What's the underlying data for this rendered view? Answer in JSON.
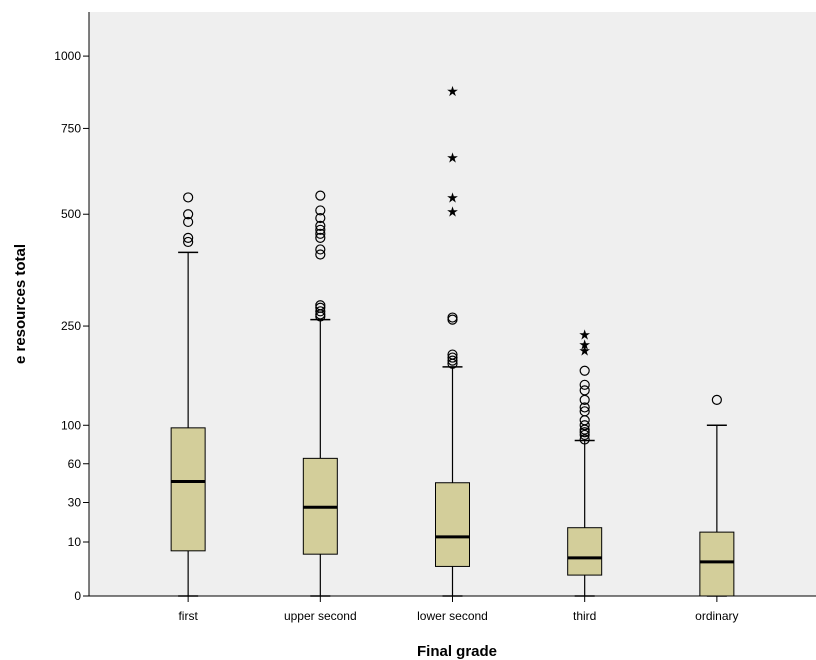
{
  "chart_data": {
    "type": "boxplot",
    "title": "",
    "xlabel": "Final grade",
    "ylabel": "e resources total",
    "y_ticks": [
      0,
      10,
      30,
      60,
      100,
      250,
      500,
      750,
      1000
    ],
    "ylim": [
      0,
      1170
    ],
    "scale": "sqrt",
    "grid": false,
    "colors": {
      "plot_bg": "#efefef",
      "box_fill": "#d3ce9a",
      "stroke": "#000000"
    },
    "categories": [
      "first",
      "upper second",
      "lower second",
      "third",
      "ordinary"
    ],
    "boxes": [
      {
        "category": "first",
        "whisker_low": 0,
        "q1": 7,
        "median": 45,
        "q3": 97,
        "whisker_high": 405,
        "outliers": [
          430,
          440,
          480,
          500,
          545
        ],
        "extremes": []
      },
      {
        "category": "upper second",
        "whisker_low": 0,
        "q1": 6,
        "median": 27,
        "q3": 65,
        "whisker_high": 262,
        "outliers": [
          268,
          272,
          278,
          285,
          290,
          400,
          412,
          440,
          450,
          460,
          470,
          490,
          510,
          550
        ],
        "extremes": []
      },
      {
        "category": "lower second",
        "whisker_low": 0,
        "q1": 3,
        "median": 12,
        "q3": 44,
        "whisker_high": 180,
        "outliers": [
          185,
          190,
          195,
          200,
          262,
          266
        ],
        "extremes": [
          507,
          545,
          660,
          875
        ]
      },
      {
        "category": "third",
        "whisker_low": 0,
        "q1": 1.5,
        "median": 5,
        "q3": 16,
        "whisker_high": 83,
        "outliers": [
          84,
          89,
          92,
          95,
          100,
          106,
          117,
          122,
          132,
          145,
          153,
          174
        ],
        "extremes": [
          207,
          217,
          235
        ]
      },
      {
        "category": "ordinary",
        "whisker_low": 0,
        "q1": 0,
        "median": 4,
        "q3": 14,
        "whisker_high": 100,
        "outliers": [
          132
        ],
        "extremes": []
      }
    ]
  }
}
